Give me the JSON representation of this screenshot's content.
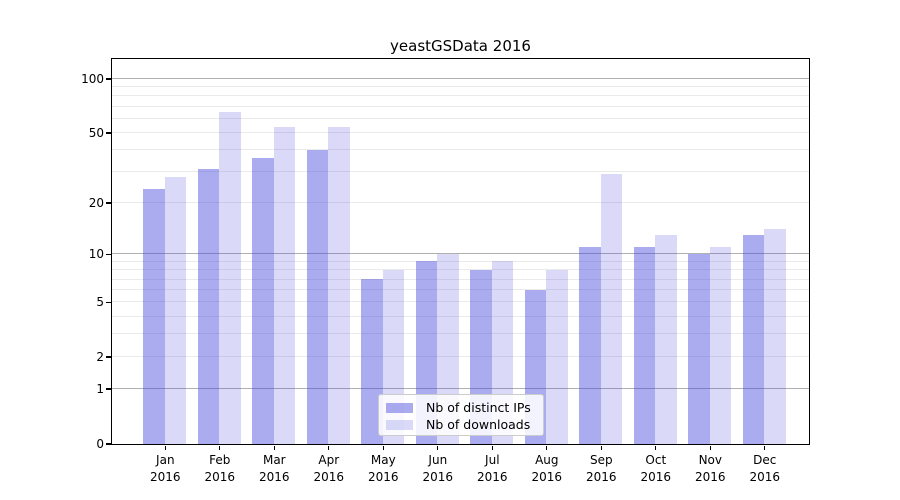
{
  "chart_data": {
    "type": "bar",
    "title": "yeastGSData 2016",
    "categories": [
      "Jan",
      "Feb",
      "Mar",
      "Apr",
      "May",
      "Jun",
      "Jul",
      "Aug",
      "Sep",
      "Oct",
      "Nov",
      "Dec"
    ],
    "category_year": "2016",
    "series": [
      {
        "name": "Nb of distinct IPs",
        "values": [
          24,
          31,
          36,
          40,
          7,
          9,
          8,
          6,
          11,
          11,
          10,
          13
        ],
        "color": "rgba(68,68,221,0.45)"
      },
      {
        "name": "Nb of downloads",
        "values": [
          28,
          65,
          54,
          54,
          8,
          10,
          9,
          8,
          29,
          13,
          11,
          14
        ],
        "color": "rgba(68,68,221,0.20)"
      }
    ],
    "yscale": "log10(1+x)",
    "y_axis_top_value": 129,
    "y_ticks": [
      100,
      50,
      20,
      10,
      5,
      2,
      1,
      0
    ],
    "grid_major_values": [
      1,
      10,
      100
    ],
    "grid_minor_values": [
      2,
      3,
      4,
      5,
      6,
      7,
      8,
      9,
      20,
      30,
      40,
      50,
      60,
      70,
      80,
      90
    ],
    "legend_position": "bottom-center",
    "grid_on": true,
    "colors": {
      "grid_major": "#b0b0b0",
      "grid_minor": "#eaeaea",
      "spine": "#000000"
    }
  }
}
